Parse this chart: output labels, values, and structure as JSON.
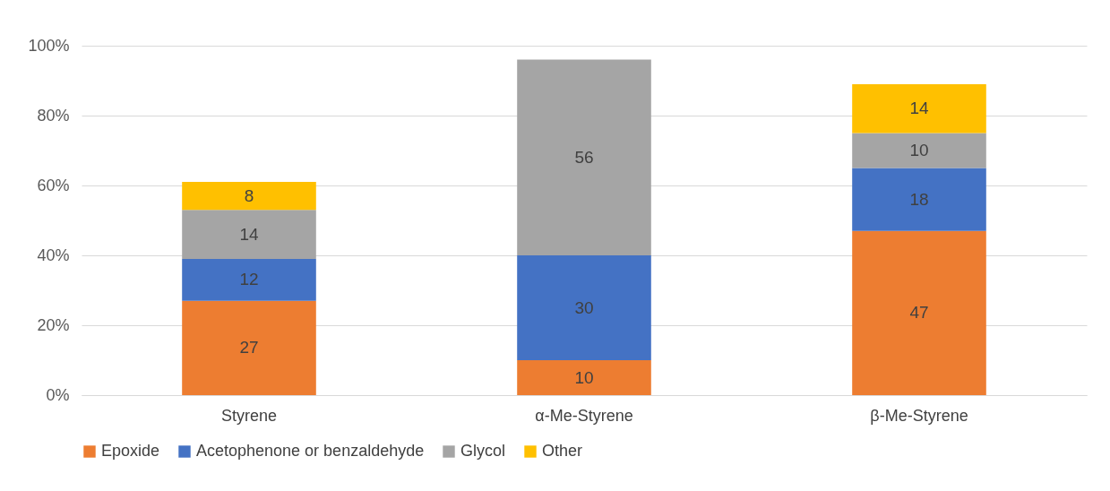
{
  "chart_data": {
    "type": "bar",
    "stacked": true,
    "data_labels": true,
    "grid": "y",
    "legend": "bottom",
    "categories": [
      "Styrene",
      "α-Me-Styrene",
      "β-Me-Styrene"
    ],
    "series": [
      {
        "name": "Epoxide",
        "color": "#ed7d31",
        "values": [
          27,
          10,
          47
        ]
      },
      {
        "name": "Acetophenone or benzaldehyde",
        "color": "#4472c4",
        "values": [
          12,
          30,
          18
        ]
      },
      {
        "name": "Glycol",
        "color": "#a5a5a5",
        "values": [
          14,
          56,
          10
        ]
      },
      {
        "name": "Other",
        "color": "#ffc000",
        "values": [
          8,
          null,
          14
        ]
      }
    ],
    "ylim": [
      0,
      100
    ],
    "yticks": [
      {
        "value": 0,
        "label": "0%"
      },
      {
        "value": 20,
        "label": "20%"
      },
      {
        "value": 40,
        "label": "40%"
      },
      {
        "value": 60,
        "label": "60%"
      },
      {
        "value": 80,
        "label": "80%"
      },
      {
        "value": 100,
        "label": "100%"
      }
    ]
  }
}
